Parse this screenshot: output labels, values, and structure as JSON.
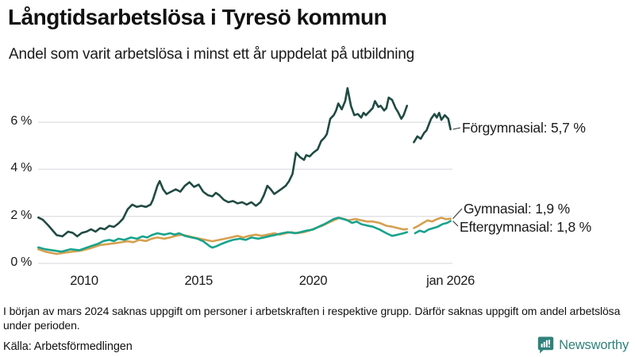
{
  "header": {
    "title": "Långtidsarbetslösa i Tyresö kommun",
    "subtitle": "Andel som varit arbetslösa i minst ett år uppdelat på utbildning"
  },
  "footer": {
    "note": "I början av mars 2024 saknas uppgift om personer i arbetskraften i respektive grupp. Därför saknas uppgift om andel arbetslösa under perioden.",
    "source": "Källa: Arbetsförmedlingen",
    "brand": "Newsworthy"
  },
  "colors": {
    "forgymnasial": "#1f4a42",
    "gymnasial": "#d5a04f",
    "eftergymnasial": "#18a38d",
    "grid": "#e3e3e8",
    "connector": "#333333",
    "text": "#1a1a1a",
    "brand_teal": "#2f827b"
  },
  "chart_data": {
    "type": "line",
    "title": "Långtidsarbetslösa i Tyresö kommun",
    "subtitle": "Andel som varit arbetslösa i minst ett år uppdelat på utbildning",
    "unit": "%",
    "grid": true,
    "legend_position": "end-of-line-labels",
    "x_axis": {
      "range": [
        2008,
        2026.4
      ],
      "ticks": [
        {
          "label": "2010",
          "year": 2010
        },
        {
          "label": "2015",
          "year": 2015
        },
        {
          "label": "2020",
          "year": 2020
        },
        {
          "label": "jan 2026",
          "year": 2026
        }
      ]
    },
    "y_axis": {
      "range": [
        0,
        7.6
      ],
      "ticks": [
        {
          "label": "0 %",
          "value": 0
        },
        {
          "label": "2 %",
          "value": 2
        },
        {
          "label": "4 %",
          "value": 4
        },
        {
          "label": "6 %",
          "value": 6
        }
      ]
    },
    "gap_note": "no data around March 2024 (null marks the gap in each series)",
    "series": [
      {
        "name": "Förgymnasial",
        "end_label": "Förgymnasial: 5,7 %",
        "end_value": "5,7 %",
        "color": "#1f4a42",
        "points": [
          [
            2008.0,
            1.95
          ],
          [
            2008.2,
            1.85
          ],
          [
            2008.45,
            1.6
          ],
          [
            2008.8,
            1.2
          ],
          [
            2009.05,
            1.15
          ],
          [
            2009.3,
            1.35
          ],
          [
            2009.5,
            1.3
          ],
          [
            2009.7,
            1.15
          ],
          [
            2009.9,
            1.3
          ],
          [
            2010.1,
            1.35
          ],
          [
            2010.3,
            1.45
          ],
          [
            2010.5,
            1.35
          ],
          [
            2010.7,
            1.5
          ],
          [
            2010.9,
            1.45
          ],
          [
            2011.1,
            1.6
          ],
          [
            2011.3,
            1.55
          ],
          [
            2011.5,
            1.7
          ],
          [
            2011.7,
            1.9
          ],
          [
            2011.9,
            2.3
          ],
          [
            2012.1,
            2.5
          ],
          [
            2012.3,
            2.4
          ],
          [
            2012.5,
            2.45
          ],
          [
            2012.7,
            2.4
          ],
          [
            2012.9,
            2.5
          ],
          [
            2013.0,
            2.7
          ],
          [
            2013.2,
            3.3
          ],
          [
            2013.3,
            3.5
          ],
          [
            2013.45,
            3.15
          ],
          [
            2013.6,
            2.95
          ],
          [
            2013.8,
            3.05
          ],
          [
            2014.0,
            3.15
          ],
          [
            2014.2,
            3.05
          ],
          [
            2014.4,
            3.3
          ],
          [
            2014.6,
            3.45
          ],
          [
            2014.8,
            3.25
          ],
          [
            2015.0,
            3.35
          ],
          [
            2015.2,
            3.05
          ],
          [
            2015.4,
            2.9
          ],
          [
            2015.6,
            2.85
          ],
          [
            2015.75,
            3.0
          ],
          [
            2015.9,
            2.9
          ],
          [
            2016.1,
            2.7
          ],
          [
            2016.3,
            2.6
          ],
          [
            2016.5,
            2.65
          ],
          [
            2016.7,
            2.55
          ],
          [
            2016.9,
            2.6
          ],
          [
            2017.1,
            2.5
          ],
          [
            2017.3,
            2.6
          ],
          [
            2017.5,
            2.45
          ],
          [
            2017.7,
            2.6
          ],
          [
            2017.85,
            2.9
          ],
          [
            2018.0,
            3.3
          ],
          [
            2018.15,
            3.15
          ],
          [
            2018.3,
            2.95
          ],
          [
            2018.45,
            3.05
          ],
          [
            2018.6,
            3.15
          ],
          [
            2018.8,
            3.3
          ],
          [
            2018.95,
            3.5
          ],
          [
            2019.1,
            3.8
          ],
          [
            2019.25,
            4.7
          ],
          [
            2019.45,
            4.5
          ],
          [
            2019.6,
            4.4
          ],
          [
            2019.7,
            4.6
          ],
          [
            2019.85,
            4.55
          ],
          [
            2020.0,
            4.7
          ],
          [
            2020.2,
            4.85
          ],
          [
            2020.35,
            5.2
          ],
          [
            2020.5,
            5.35
          ],
          [
            2020.6,
            5.5
          ],
          [
            2020.75,
            6.15
          ],
          [
            2020.9,
            6.3
          ],
          [
            2021.0,
            6.5
          ],
          [
            2021.1,
            6.8
          ],
          [
            2021.25,
            6.55
          ],
          [
            2021.4,
            6.9
          ],
          [
            2021.5,
            7.45
          ],
          [
            2021.65,
            6.7
          ],
          [
            2021.8,
            6.3
          ],
          [
            2021.95,
            6.35
          ],
          [
            2022.1,
            6.2
          ],
          [
            2022.2,
            6.4
          ],
          [
            2022.3,
            6.3
          ],
          [
            2022.45,
            6.45
          ],
          [
            2022.6,
            6.6
          ],
          [
            2022.7,
            6.9
          ],
          [
            2022.85,
            6.65
          ],
          [
            2022.95,
            6.7
          ],
          [
            2023.1,
            6.5
          ],
          [
            2023.2,
            6.6
          ],
          [
            2023.3,
            7.05
          ],
          [
            2023.45,
            6.95
          ],
          [
            2023.6,
            6.6
          ],
          [
            2023.7,
            6.45
          ],
          [
            2023.85,
            6.15
          ],
          [
            2023.95,
            6.3
          ],
          [
            2024.1,
            6.7
          ],
          null,
          [
            2024.4,
            5.15
          ],
          [
            2024.55,
            5.4
          ],
          [
            2024.7,
            5.3
          ],
          [
            2024.85,
            5.55
          ],
          [
            2024.95,
            5.65
          ],
          [
            2025.05,
            5.9
          ],
          [
            2025.15,
            6.15
          ],
          [
            2025.3,
            6.35
          ],
          [
            2025.4,
            6.2
          ],
          [
            2025.5,
            6.4
          ],
          [
            2025.6,
            6.1
          ],
          [
            2025.75,
            6.3
          ],
          [
            2025.9,
            6.15
          ],
          [
            2026.0,
            5.7
          ]
        ]
      },
      {
        "name": "Gymnasial",
        "end_label": "Gymnasial: 1,9 %",
        "end_value": "1,9 %",
        "color": "#d5a04f",
        "points": [
          [
            2008.0,
            0.6
          ],
          [
            2008.3,
            0.5
          ],
          [
            2008.6,
            0.44
          ],
          [
            2008.8,
            0.4
          ],
          [
            2009.1,
            0.45
          ],
          [
            2009.5,
            0.5
          ],
          [
            2009.9,
            0.55
          ],
          [
            2010.3,
            0.65
          ],
          [
            2010.7,
            0.78
          ],
          [
            2011.1,
            0.83
          ],
          [
            2011.5,
            0.88
          ],
          [
            2011.9,
            0.94
          ],
          [
            2012.15,
            0.9
          ],
          [
            2012.4,
            1.0
          ],
          [
            2012.7,
            0.95
          ],
          [
            2012.95,
            1.05
          ],
          [
            2013.2,
            1.1
          ],
          [
            2013.5,
            1.05
          ],
          [
            2013.75,
            1.1
          ],
          [
            2014.0,
            1.17
          ],
          [
            2014.25,
            1.22
          ],
          [
            2014.5,
            1.17
          ],
          [
            2014.8,
            1.1
          ],
          [
            2015.05,
            1.05
          ],
          [
            2015.3,
            1.0
          ],
          [
            2015.6,
            0.94
          ],
          [
            2015.9,
            1.0
          ],
          [
            2016.15,
            1.05
          ],
          [
            2016.4,
            1.1
          ],
          [
            2016.7,
            1.17
          ],
          [
            2016.95,
            1.1
          ],
          [
            2017.2,
            1.17
          ],
          [
            2017.5,
            1.22
          ],
          [
            2017.75,
            1.17
          ],
          [
            2018.0,
            1.22
          ],
          [
            2018.3,
            1.28
          ],
          [
            2018.55,
            1.22
          ],
          [
            2018.8,
            1.28
          ],
          [
            2019.05,
            1.33
          ],
          [
            2019.3,
            1.28
          ],
          [
            2019.6,
            1.33
          ],
          [
            2019.85,
            1.4
          ],
          [
            2020.1,
            1.5
          ],
          [
            2020.4,
            1.6
          ],
          [
            2020.65,
            1.72
          ],
          [
            2020.9,
            1.83
          ],
          [
            2021.15,
            1.94
          ],
          [
            2021.35,
            1.89
          ],
          [
            2021.55,
            1.83
          ],
          [
            2021.85,
            1.89
          ],
          [
            2022.1,
            1.83
          ],
          [
            2022.35,
            1.78
          ],
          [
            2022.6,
            1.78
          ],
          [
            2022.9,
            1.72
          ],
          [
            2023.2,
            1.6
          ],
          [
            2023.45,
            1.56
          ],
          [
            2023.7,
            1.5
          ],
          [
            2023.95,
            1.44
          ],
          [
            2024.1,
            1.46
          ],
          null,
          [
            2024.4,
            1.5
          ],
          [
            2024.6,
            1.6
          ],
          [
            2024.8,
            1.72
          ],
          [
            2025.0,
            1.83
          ],
          [
            2025.2,
            1.78
          ],
          [
            2025.4,
            1.88
          ],
          [
            2025.6,
            1.94
          ],
          [
            2025.8,
            1.88
          ],
          [
            2026.0,
            1.9
          ]
        ]
      },
      {
        "name": "Eftergymnasial",
        "end_label": "Eftergymnasial: 1,8 %",
        "end_value": "1,8 %",
        "color": "#18a38d",
        "points": [
          [
            2008.0,
            0.68
          ],
          [
            2008.3,
            0.6
          ],
          [
            2008.6,
            0.56
          ],
          [
            2009.0,
            0.5
          ],
          [
            2009.4,
            0.6
          ],
          [
            2009.8,
            0.56
          ],
          [
            2010.2,
            0.7
          ],
          [
            2010.6,
            0.83
          ],
          [
            2010.85,
            0.95
          ],
          [
            2011.1,
            1.0
          ],
          [
            2011.3,
            0.95
          ],
          [
            2011.5,
            1.05
          ],
          [
            2011.75,
            1.0
          ],
          [
            2012.05,
            1.1
          ],
          [
            2012.3,
            1.05
          ],
          [
            2012.55,
            1.15
          ],
          [
            2012.75,
            1.1
          ],
          [
            2012.95,
            1.2
          ],
          [
            2013.2,
            1.28
          ],
          [
            2013.5,
            1.22
          ],
          [
            2013.75,
            1.28
          ],
          [
            2013.95,
            1.22
          ],
          [
            2014.15,
            1.28
          ],
          [
            2014.4,
            1.17
          ],
          [
            2014.7,
            1.1
          ],
          [
            2014.95,
            1.05
          ],
          [
            2015.2,
            0.94
          ],
          [
            2015.5,
            0.72
          ],
          [
            2015.6,
            0.67
          ],
          [
            2015.75,
            0.72
          ],
          [
            2016.0,
            0.83
          ],
          [
            2016.3,
            0.94
          ],
          [
            2016.5,
            1.0
          ],
          [
            2016.8,
            1.05
          ],
          [
            2017.05,
            1.0
          ],
          [
            2017.3,
            1.1
          ],
          [
            2017.6,
            1.05
          ],
          [
            2017.85,
            1.1
          ],
          [
            2018.15,
            1.17
          ],
          [
            2018.4,
            1.22
          ],
          [
            2018.65,
            1.28
          ],
          [
            2018.9,
            1.33
          ],
          [
            2019.2,
            1.28
          ],
          [
            2019.45,
            1.33
          ],
          [
            2019.7,
            1.39
          ],
          [
            2020.0,
            1.44
          ],
          [
            2020.25,
            1.56
          ],
          [
            2020.5,
            1.67
          ],
          [
            2020.7,
            1.78
          ],
          [
            2020.9,
            1.89
          ],
          [
            2021.1,
            1.94
          ],
          [
            2021.3,
            1.89
          ],
          [
            2021.5,
            1.83
          ],
          [
            2021.7,
            1.72
          ],
          [
            2021.9,
            1.78
          ],
          [
            2022.1,
            1.67
          ],
          [
            2022.35,
            1.61
          ],
          [
            2022.6,
            1.56
          ],
          [
            2022.9,
            1.44
          ],
          [
            2023.2,
            1.28
          ],
          [
            2023.45,
            1.17
          ],
          [
            2023.7,
            1.22
          ],
          [
            2023.95,
            1.28
          ],
          [
            2024.1,
            1.33
          ],
          null,
          [
            2024.45,
            1.28
          ],
          [
            2024.65,
            1.39
          ],
          [
            2024.85,
            1.33
          ],
          [
            2025.05,
            1.44
          ],
          [
            2025.25,
            1.5
          ],
          [
            2025.45,
            1.56
          ],
          [
            2025.65,
            1.67
          ],
          [
            2025.85,
            1.72
          ],
          [
            2026.0,
            1.8
          ]
        ]
      }
    ]
  }
}
